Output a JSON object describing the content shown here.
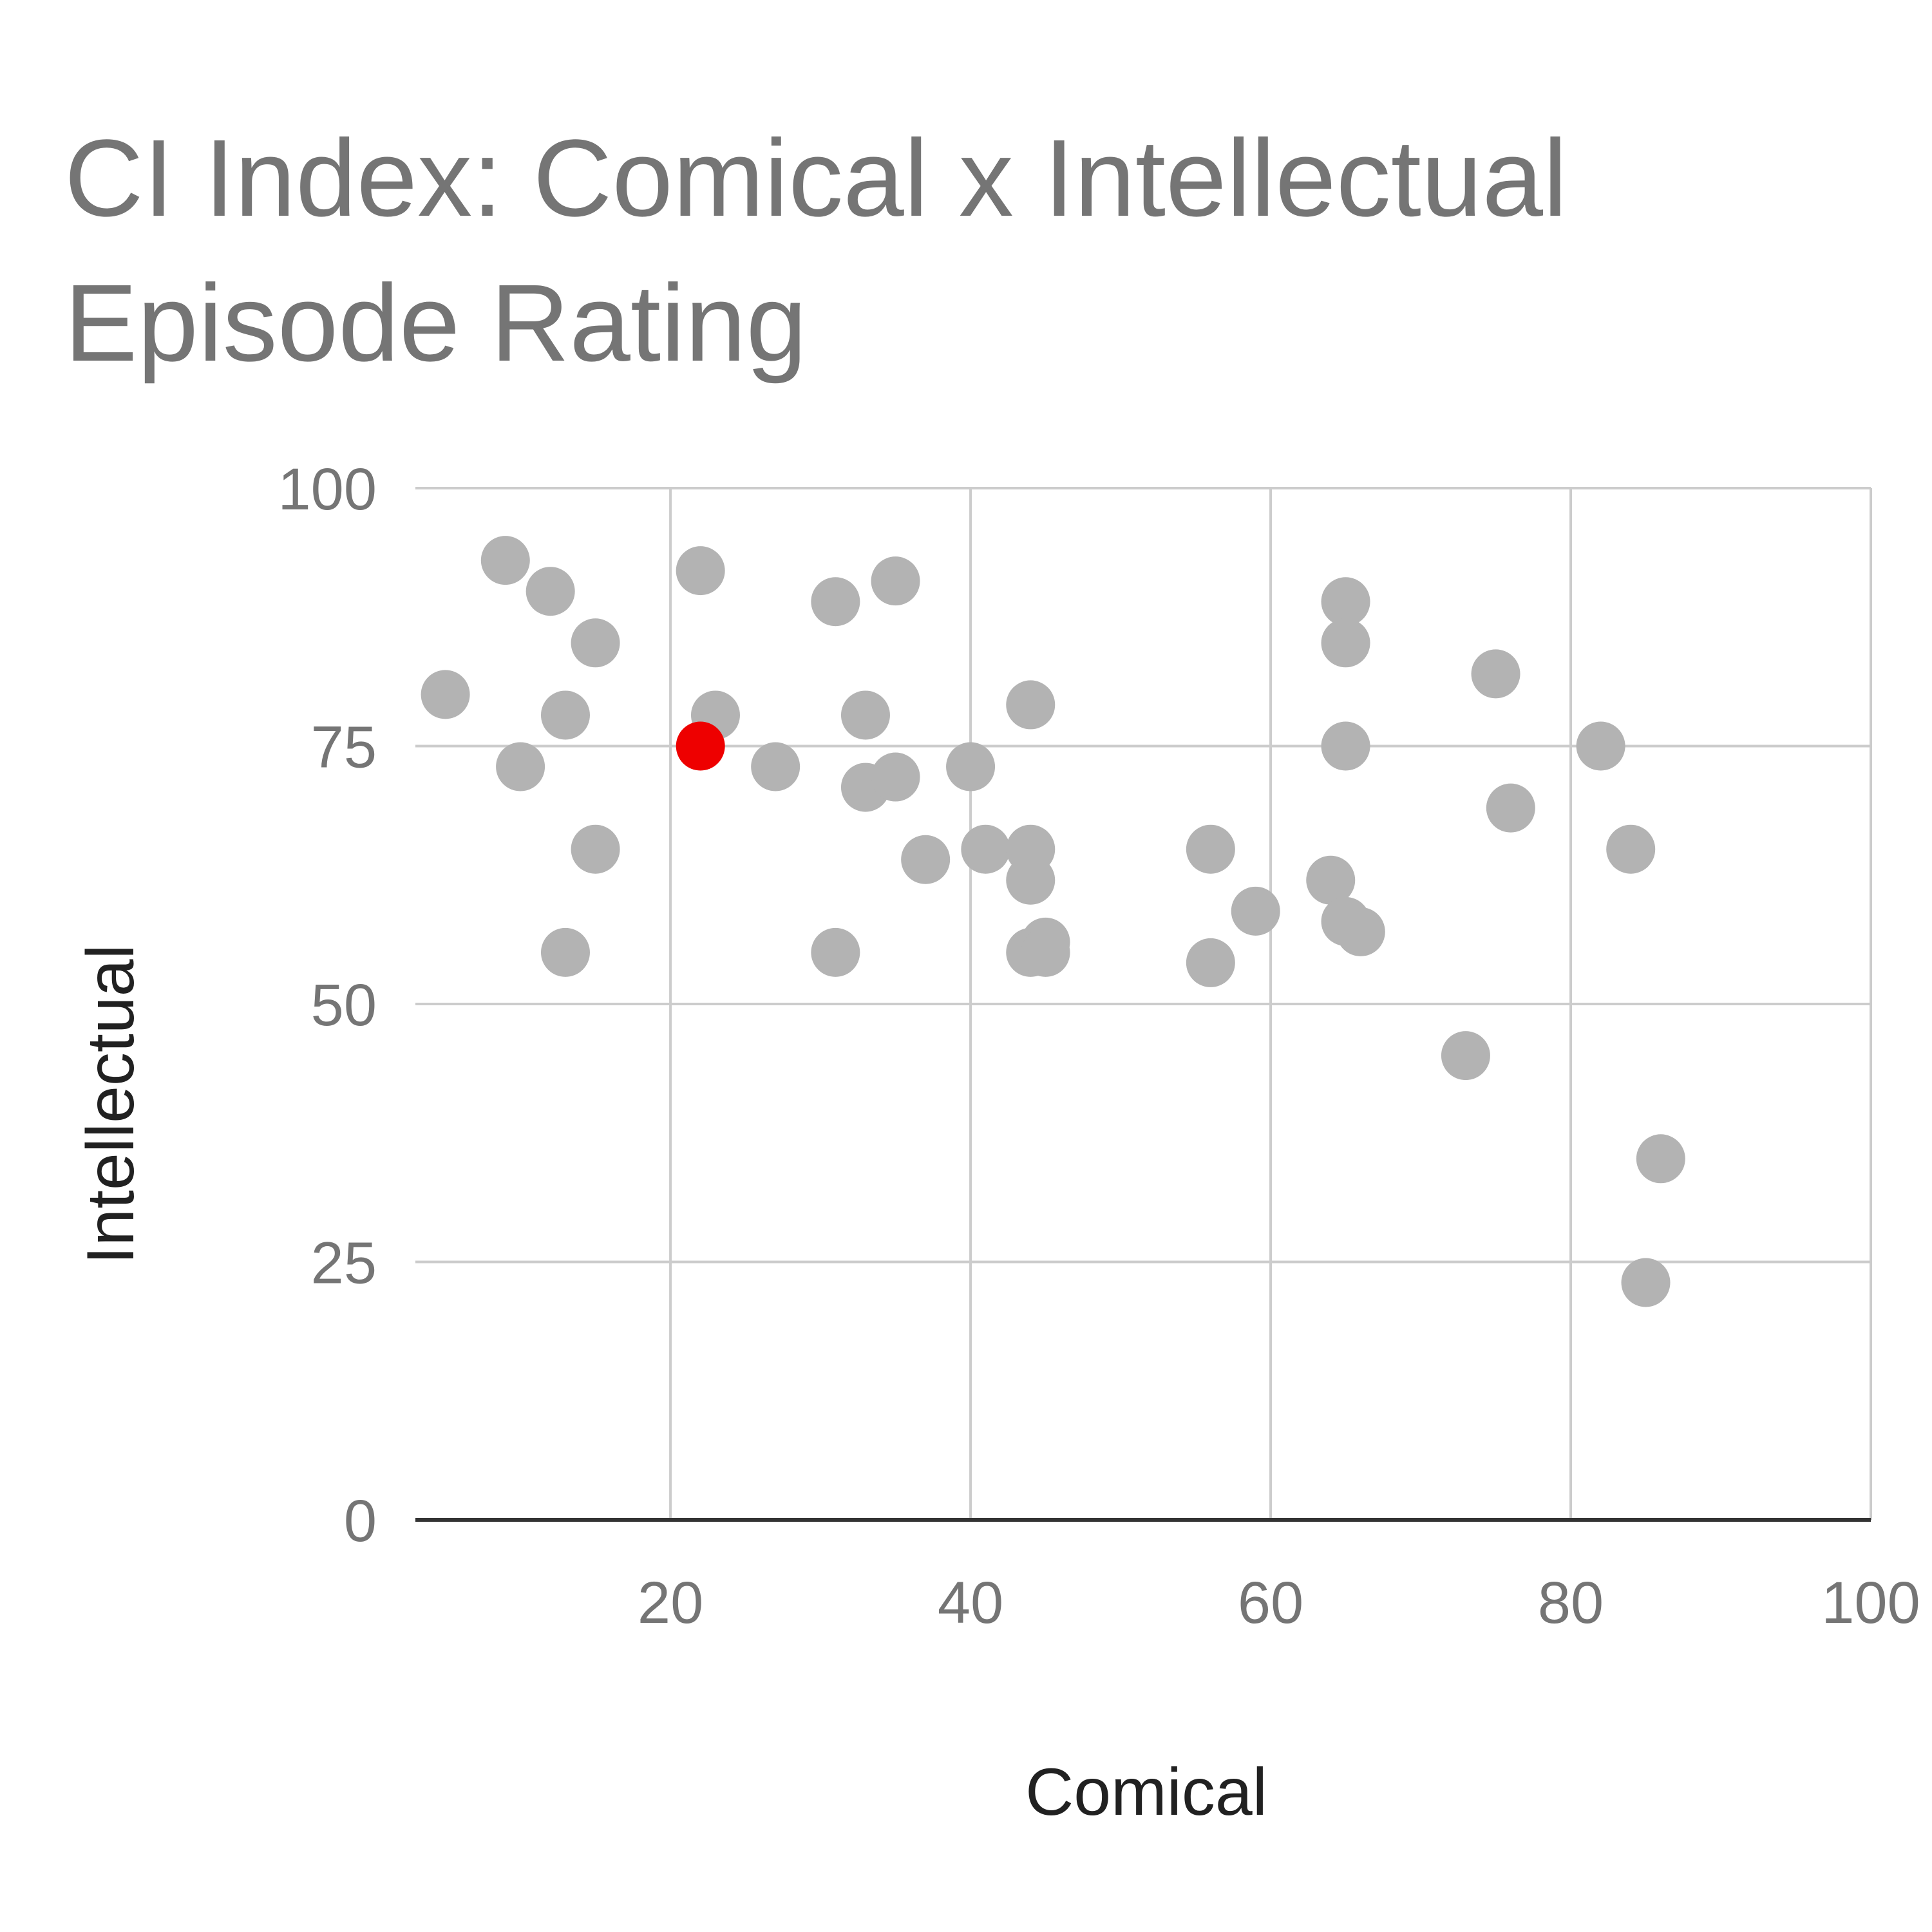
{
  "chart_data": {
    "type": "scatter",
    "title_lines": [
      "CI Index: Comical x Intellectual",
      "Episode Rating"
    ],
    "xlabel": "Comical",
    "ylabel": "Intellectual",
    "xlim": [
      3,
      100
    ],
    "ylim": [
      0,
      100
    ],
    "x_ticks": [
      20,
      40,
      60,
      80,
      100
    ],
    "y_ticks": [
      0,
      25,
      50,
      75,
      100
    ],
    "grid": true,
    "legend": "none",
    "colors": {
      "point": "#b3b3b3",
      "highlight": "#ee0000",
      "grid": "#cccccc",
      "baseline": "#333333"
    },
    "series": [
      {
        "points": [
          [
            5,
            80
          ],
          [
            9,
            93
          ],
          [
            10,
            73
          ],
          [
            12,
            90
          ],
          [
            13,
            78
          ],
          [
            13,
            55
          ],
          [
            15,
            85
          ],
          [
            15,
            65
          ],
          [
            22,
            92
          ],
          [
            23,
            78
          ],
          [
            27,
            73
          ],
          [
            31,
            89
          ],
          [
            31,
            55
          ],
          [
            33,
            78
          ],
          [
            33,
            71
          ],
          [
            35,
            91
          ],
          [
            35,
            72
          ],
          [
            37,
            64
          ],
          [
            40,
            73
          ],
          [
            41,
            65
          ],
          [
            44,
            79
          ],
          [
            44,
            65
          ],
          [
            44,
            62
          ],
          [
            44,
            55
          ],
          [
            45,
            56
          ],
          [
            45,
            55
          ],
          [
            56,
            65
          ],
          [
            56,
            54
          ],
          [
            59,
            59
          ],
          [
            64,
            62
          ],
          [
            65,
            89
          ],
          [
            65,
            85
          ],
          [
            65,
            75
          ],
          [
            65,
            58
          ],
          [
            66,
            57
          ],
          [
            73,
            45
          ],
          [
            75,
            82
          ],
          [
            76,
            69
          ],
          [
            82,
            75
          ],
          [
            84,
            65
          ],
          [
            85,
            23
          ],
          [
            86,
            35
          ]
        ]
      },
      {
        "highlight": true,
        "points": [
          [
            22,
            75
          ]
        ]
      }
    ]
  }
}
